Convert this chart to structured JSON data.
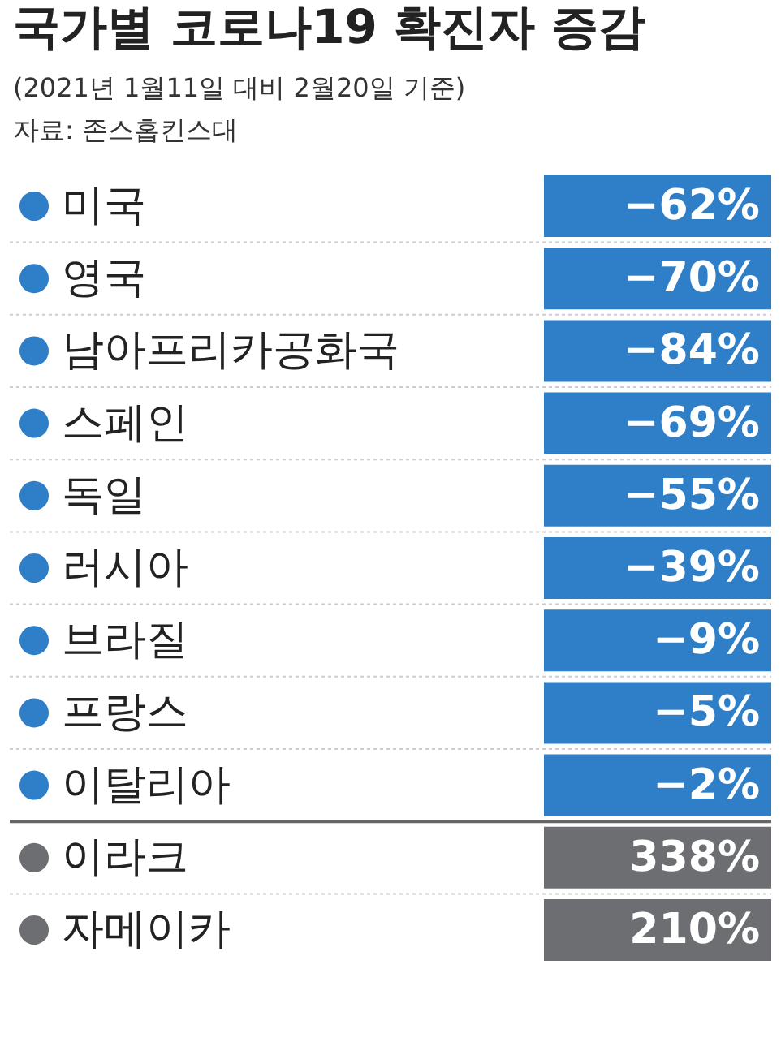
{
  "chart_data": {
    "type": "other",
    "title": "국가별 코로나19 확진자 증감",
    "subtitle": "(2021년 1월11일 대비 2월20일 기준)",
    "annotations": [
      "자료: 존스홉킨스대"
    ],
    "categories": [
      "미국",
      "영국",
      "남아프리카공화국",
      "스페인",
      "독일",
      "러시아",
      "브라질",
      "프랑스",
      "이탈리아",
      "이라크",
      "자메이카"
    ],
    "values": [
      -62,
      -70,
      -84,
      -69,
      -55,
      -39,
      -9,
      -5,
      -2,
      338,
      210
    ],
    "value_labels": [
      "−62%",
      "−70%",
      "−84%",
      "−69%",
      "−55%",
      "−39%",
      "−9%",
      "−5%",
      "−2%",
      "338%",
      "210%"
    ],
    "colors": [
      "#2f7fc8",
      "#2f7fc8",
      "#2f7fc8",
      "#2f7fc8",
      "#2f7fc8",
      "#2f7fc8",
      "#2f7fc8",
      "#2f7fc8",
      "#2f7fc8",
      "#6d6e71",
      "#6d6e71"
    ]
  }
}
